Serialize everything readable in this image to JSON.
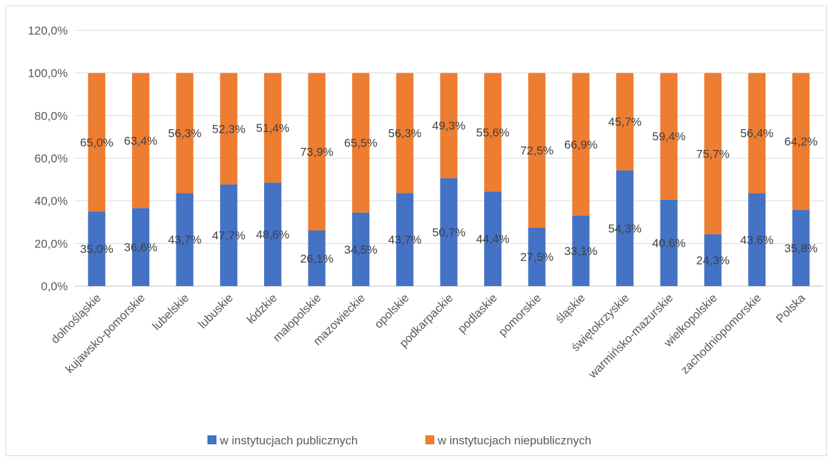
{
  "chart_data": {
    "type": "bar",
    "stacked": true,
    "title": "",
    "xlabel": "",
    "ylabel": "",
    "ylim": [
      0,
      120
    ],
    "yticks": [
      "0,0%",
      "20,0%",
      "40,0%",
      "60,0%",
      "80,0%",
      "100,0%",
      "120,0%"
    ],
    "grid": true,
    "legend_position": "bottom",
    "categories": [
      "dolnośląskie",
      "kujawsko-pomorskie",
      "lubelskie",
      "lubuskie",
      "łódzkie",
      "małopolskie",
      "mazowieckie",
      "opolskie",
      "podkarpackie",
      "podlaskie",
      "pomorskie",
      "śląskie",
      "świętokrzyskie",
      "warmińsko-mazurskie",
      "wielkopolskie",
      "zachodniopomorskie",
      "Polska"
    ],
    "series": [
      {
        "name": "w instytucjach publicznych",
        "color": "#4472C4",
        "values": [
          35.0,
          36.6,
          43.7,
          47.7,
          48.6,
          26.1,
          34.5,
          43.7,
          50.7,
          44.4,
          27.5,
          33.1,
          54.3,
          40.6,
          24.3,
          43.6,
          35.8
        ],
        "labels": [
          "35,0%",
          "36,6%",
          "43,7%",
          "47,7%",
          "48,6%",
          "26,1%",
          "34,5%",
          "43,7%",
          "50,7%",
          "44,4%",
          "27,5%",
          "33,1%",
          "54,3%",
          "40,6%",
          "24,3%",
          "43,6%",
          "35,8%"
        ]
      },
      {
        "name": "w instytucjach niepublicznych",
        "color": "#ED7D31",
        "values": [
          65.0,
          63.4,
          56.3,
          52.3,
          51.4,
          73.9,
          65.5,
          56.3,
          49.3,
          55.6,
          72.5,
          66.9,
          45.7,
          59.4,
          75.7,
          56.4,
          64.2
        ],
        "labels": [
          "65,0%",
          "63,4%",
          "56,3%",
          "52,3%",
          "51,4%",
          "73,9%",
          "65,5%",
          "56,3%",
          "49,3%",
          "55,6%",
          "72,5%",
          "66,9%",
          "45,7%",
          "59,4%",
          "75,7%",
          "56,4%",
          "64,2%"
        ]
      }
    ]
  }
}
